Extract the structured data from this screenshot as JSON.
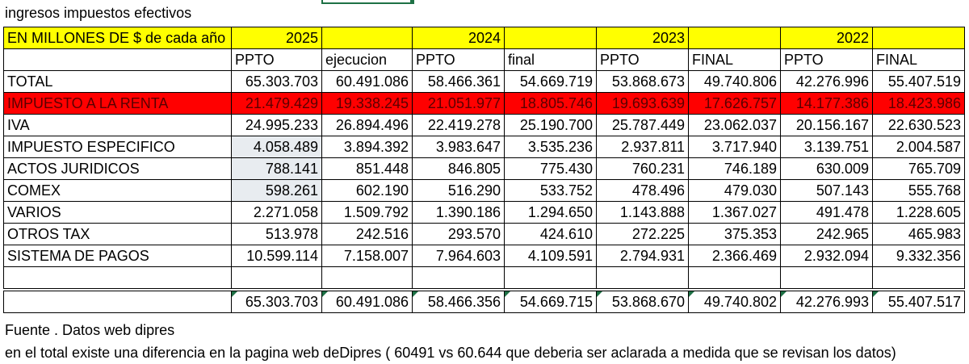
{
  "title": "ingresos impuestos efectivos",
  "header": {
    "label": "EN MILLONES DE $ de cada año",
    "years": [
      "2025",
      "2024",
      "2023",
      "2022"
    ]
  },
  "subheaders": [
    "PPTO",
    "ejecucion",
    "PPTO",
    "final",
    "PPTO",
    "FINAL",
    "PPTO",
    "FINAL"
  ],
  "rows": [
    {
      "name": "TOTAL",
      "values": [
        "65.303.703",
        "60.491.086",
        "58.466.361",
        "54.669.719",
        "53.868.673",
        "49.740.806",
        "42.276.996",
        "55.407.519"
      ]
    },
    {
      "name": "IMPUESTO A LA RENTA",
      "values": [
        "21.479.429",
        "19.338.245",
        "21.051.977",
        "18.805.746",
        "19.693.639",
        "17.626.757",
        "14.177.386",
        "18.423.986"
      ],
      "highlight": true
    },
    {
      "name": "IVA",
      "values": [
        "24.995.233",
        "26.894.496",
        "22.419.278",
        "25.190.700",
        "25.787.449",
        "23.062.037",
        "20.156.167",
        "22.630.523"
      ]
    },
    {
      "name": "IMPUESTO ESPECIFICO",
      "values": [
        "4.058.489",
        "3.894.392",
        "3.983.647",
        "3.535.236",
        "2.937.811",
        "3.717.940",
        "3.139.751",
        "2.004.587"
      ],
      "sel": true
    },
    {
      "name": "ACTOS JURIDICOS",
      "values": [
        "788.141",
        "851.448",
        "846.805",
        "775.430",
        "760.231",
        "746.189",
        "630.009",
        "765.709"
      ],
      "sel": true
    },
    {
      "name": "COMEX",
      "values": [
        "598.261",
        "602.190",
        "516.290",
        "533.752",
        "478.496",
        "479.030",
        "507.143",
        "555.768"
      ],
      "sel": true
    },
    {
      "name": "VARIOS",
      "values": [
        "2.271.058",
        "1.509.792",
        "1.390.186",
        "1.294.650",
        "1.143.888",
        "1.367.027",
        "491.478",
        "1.228.605"
      ]
    },
    {
      "name": "OTROS TAX",
      "values": [
        "513.978",
        "242.516",
        "293.570",
        "424.610",
        "272.225",
        "375.353",
        "242.965",
        "465.983"
      ]
    },
    {
      "name": "SISTEMA DE PAGOS",
      "values": [
        "10.599.114",
        "7.158.007",
        "7.964.603",
        "4.109.591",
        "2.794.931",
        "2.366.469",
        "2.932.094",
        "9.332.356"
      ]
    }
  ],
  "totals": [
    "65.303.703",
    "60.491.086",
    "58.466.356",
    "54.669.715",
    "53.868.670",
    "49.740.802",
    "42.276.993",
    "55.407.517"
  ],
  "source": "Fuente . Datos web dipres",
  "note": "en el total existe una diferencia en la pagina web deDipres ( 60491 vs 60.644 que deberia ser aclarada a medida que se revisan los datos)",
  "colors": {
    "header_yellow": "#ffff00",
    "highlight_red": "#ff0000",
    "selection_gray": "#e8ecf0",
    "excel_green": "#1e7145"
  }
}
